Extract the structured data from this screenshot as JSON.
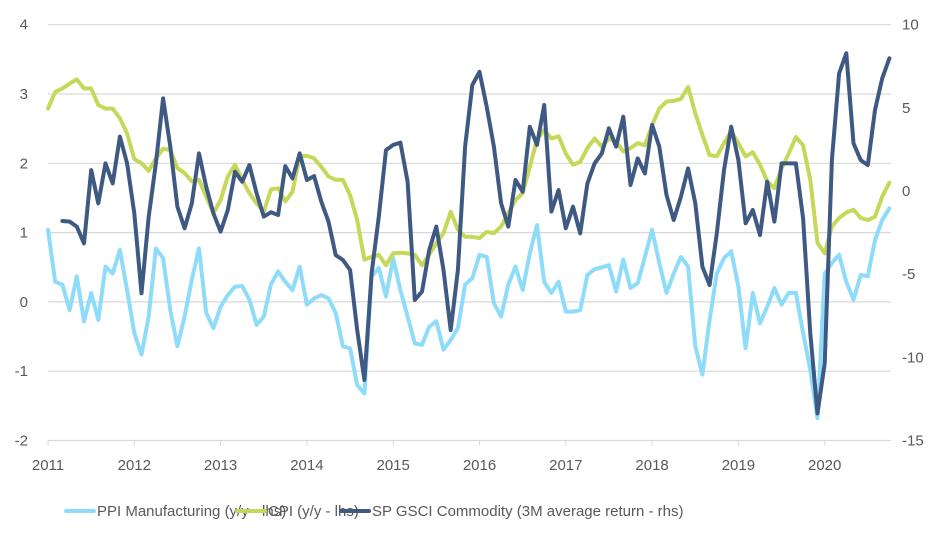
{
  "chart_data": {
    "type": "line",
    "title": "",
    "xlabel": "",
    "ylabel": "",
    "y2label": "",
    "ylim": [
      -2,
      4
    ],
    "y2lim": [
      -15,
      10
    ],
    "yticks": [
      "4",
      "3",
      "2",
      "1",
      "0",
      "-1",
      "-2"
    ],
    "y2ticks": [
      "10",
      "5",
      "0",
      "-5",
      "-10",
      "-15"
    ],
    "xticks": [
      "2011",
      "2012",
      "2013",
      "2014",
      "2015",
      "2016",
      "2017",
      "2018",
      "2019",
      "2020"
    ],
    "grid": true,
    "legend_position": "bottom",
    "x": [
      "2011-01",
      "2011-02",
      "2011-03",
      "2011-04",
      "2011-05",
      "2011-06",
      "2011-07",
      "2011-08",
      "2011-09",
      "2011-10",
      "2011-11",
      "2011-12",
      "2012-01",
      "2012-02",
      "2012-03",
      "2012-04",
      "2012-05",
      "2012-06",
      "2012-07",
      "2012-08",
      "2012-09",
      "2012-10",
      "2012-11",
      "2012-12",
      "2013-01",
      "2013-02",
      "2013-03",
      "2013-04",
      "2013-05",
      "2013-06",
      "2013-07",
      "2013-08",
      "2013-09",
      "2013-10",
      "2013-11",
      "2013-12",
      "2014-01",
      "2014-02",
      "2014-03",
      "2014-04",
      "2014-05",
      "2014-06",
      "2014-07",
      "2014-08",
      "2014-09",
      "2014-10",
      "2014-11",
      "2014-12",
      "2015-01",
      "2015-02",
      "2015-03",
      "2015-04",
      "2015-05",
      "2015-06",
      "2015-07",
      "2015-08",
      "2015-09",
      "2015-10",
      "2015-11",
      "2015-12",
      "2016-01",
      "2016-02",
      "2016-03",
      "2016-04",
      "2016-05",
      "2016-06",
      "2016-07",
      "2016-08",
      "2016-09",
      "2016-10",
      "2016-11",
      "2016-12",
      "2017-01",
      "2017-02",
      "2017-03",
      "2017-04",
      "2017-05",
      "2017-06",
      "2017-07",
      "2017-08",
      "2017-09",
      "2017-10",
      "2017-11",
      "2017-12",
      "2018-01",
      "2018-02",
      "2018-03",
      "2018-04",
      "2018-05",
      "2018-06",
      "2018-07",
      "2018-08",
      "2018-09",
      "2018-10",
      "2018-11",
      "2018-12",
      "2019-01",
      "2019-02",
      "2019-03",
      "2019-04",
      "2019-05",
      "2019-06",
      "2019-07",
      "2019-08",
      "2019-09",
      "2019-10",
      "2019-11",
      "2019-12",
      "2020-01",
      "2020-02",
      "2020-03",
      "2020-04",
      "2020-05",
      "2020-06",
      "2020-07",
      "2020-08",
      "2020-09",
      "2020-10"
    ],
    "series": [
      {
        "name": "PPI Manufacturing (y/y - lhs)",
        "axis": "left",
        "color": "#8fdcfa",
        "values": [
          1.04,
          0.29,
          0.25,
          -0.12,
          0.37,
          -0.28,
          0.13,
          -0.26,
          0.51,
          0.41,
          0.75,
          0.17,
          -0.45,
          -0.76,
          -0.21,
          0.77,
          0.63,
          -0.12,
          -0.64,
          -0.21,
          0.32,
          0.77,
          -0.16,
          -0.38,
          -0.07,
          0.1,
          0.22,
          0.23,
          0.03,
          -0.33,
          -0.21,
          0.25,
          0.44,
          0.29,
          0.17,
          0.51,
          -0.04,
          0.05,
          0.1,
          0.05,
          -0.16,
          -0.64,
          -0.67,
          -1.2,
          -1.32,
          0.37,
          0.49,
          0.08,
          0.63,
          0.17,
          -0.21,
          -0.6,
          -0.62,
          -0.36,
          -0.28,
          -0.69,
          -0.55,
          -0.38,
          0.25,
          0.34,
          0.68,
          0.65,
          -0.02,
          -0.21,
          0.25,
          0.51,
          0.17,
          0.7,
          1.11,
          0.29,
          0.13,
          0.29,
          -0.14,
          -0.14,
          -0.12,
          0.39,
          0.47,
          0.5,
          0.53,
          0.15,
          0.61,
          0.2,
          0.27,
          0.65,
          1.04,
          0.56,
          0.13,
          0.41,
          0.65,
          0.51,
          -0.64,
          -1.05,
          -0.26,
          0.41,
          0.63,
          0.73,
          0.22,
          -0.67,
          0.13,
          -0.31,
          -0.07,
          0.2,
          -0.04,
          0.13,
          0.13,
          -0.45,
          -0.98,
          -1.68,
          0.41,
          0.56,
          0.68,
          0.29,
          0.03,
          0.39,
          0.37,
          0.89,
          1.18,
          1.35
        ]
      },
      {
        "name": "CPI (y/y - lhs)",
        "axis": "left",
        "color": "#c5d85a",
        "values": [
          2.79,
          3.03,
          3.08,
          3.15,
          3.21,
          3.08,
          3.08,
          2.84,
          2.79,
          2.79,
          2.65,
          2.43,
          2.06,
          2.0,
          1.89,
          2.07,
          2.21,
          2.19,
          1.93,
          1.86,
          1.74,
          1.76,
          1.52,
          1.28,
          1.47,
          1.81,
          1.98,
          1.76,
          1.57,
          1.42,
          1.3,
          1.62,
          1.64,
          1.45,
          1.59,
          2.1,
          2.11,
          2.07,
          1.95,
          1.81,
          1.76,
          1.76,
          1.54,
          1.18,
          0.61,
          0.65,
          0.68,
          0.53,
          0.7,
          0.71,
          0.7,
          0.68,
          0.53,
          0.68,
          0.85,
          0.99,
          1.3,
          1.04,
          0.94,
          0.94,
          0.92,
          1.01,
          0.99,
          1.09,
          1.28,
          1.47,
          1.57,
          1.95,
          2.34,
          2.48,
          2.36,
          2.39,
          2.14,
          1.98,
          2.02,
          2.22,
          2.36,
          2.24,
          2.36,
          2.31,
          2.17,
          2.22,
          2.29,
          2.26,
          2.55,
          2.79,
          2.89,
          2.9,
          2.93,
          3.1,
          2.72,
          2.41,
          2.12,
          2.1,
          2.29,
          2.46,
          2.29,
          2.1,
          2.16,
          1.98,
          1.74,
          1.64,
          1.93,
          2.14,
          2.38,
          2.26,
          1.76,
          0.85,
          0.7,
          1.09,
          1.21,
          1.29,
          1.33,
          1.21,
          1.18,
          1.23,
          1.52,
          1.72
        ]
      },
      {
        "name": "SP GSCI Commodity (3M average return - rhs)",
        "axis": "right",
        "color": "#3e5a83",
        "values": [
          null,
          null,
          -1.8,
          -1.84,
          -2.14,
          -3.15,
          1.26,
          -0.74,
          1.66,
          0.46,
          3.27,
          1.66,
          -1.34,
          -6.15,
          -1.54,
          1.66,
          5.57,
          2.67,
          -0.94,
          -2.24,
          -0.74,
          2.26,
          0.26,
          -1.34,
          -2.44,
          -1.14,
          1.16,
          0.56,
          1.56,
          -0.14,
          -1.54,
          -1.28,
          -1.44,
          1.5,
          0.76,
          2.26,
          0.66,
          0.9,
          -0.64,
          -1.84,
          -3.85,
          -4.15,
          -4.75,
          -8.36,
          -11.36,
          -4.95,
          -1.54,
          2.46,
          2.77,
          2.91,
          0.56,
          -6.55,
          -6.05,
          -3.55,
          -2.14,
          -4.75,
          -8.36,
          -4.75,
          2.67,
          6.37,
          7.17,
          5.07,
          2.67,
          -0.74,
          -2.14,
          0.66,
          -0.04,
          3.87,
          2.77,
          5.17,
          -1.24,
          0.06,
          -2.24,
          -0.94,
          -2.55,
          0.46,
          1.66,
          2.26,
          3.77,
          2.67,
          4.47,
          0.36,
          1.96,
          1.06,
          3.97,
          2.67,
          -0.24,
          -1.74,
          -0.34,
          1.36,
          -0.74,
          -4.55,
          -5.65,
          -2.55,
          1.26,
          3.87,
          1.86,
          -1.94,
          -1.14,
          -2.65,
          0.56,
          -1.84,
          1.66,
          1.66,
          1.66,
          -1.64,
          -8.56,
          -13.37,
          -10.36,
          1.86,
          7.07,
          8.28,
          2.87,
          1.86,
          1.56,
          4.87,
          6.77,
          7.98
        ]
      }
    ]
  },
  "colors": {
    "grid": "#d9d9d9",
    "text": "#595959",
    "axis": "#bfbfbf"
  }
}
